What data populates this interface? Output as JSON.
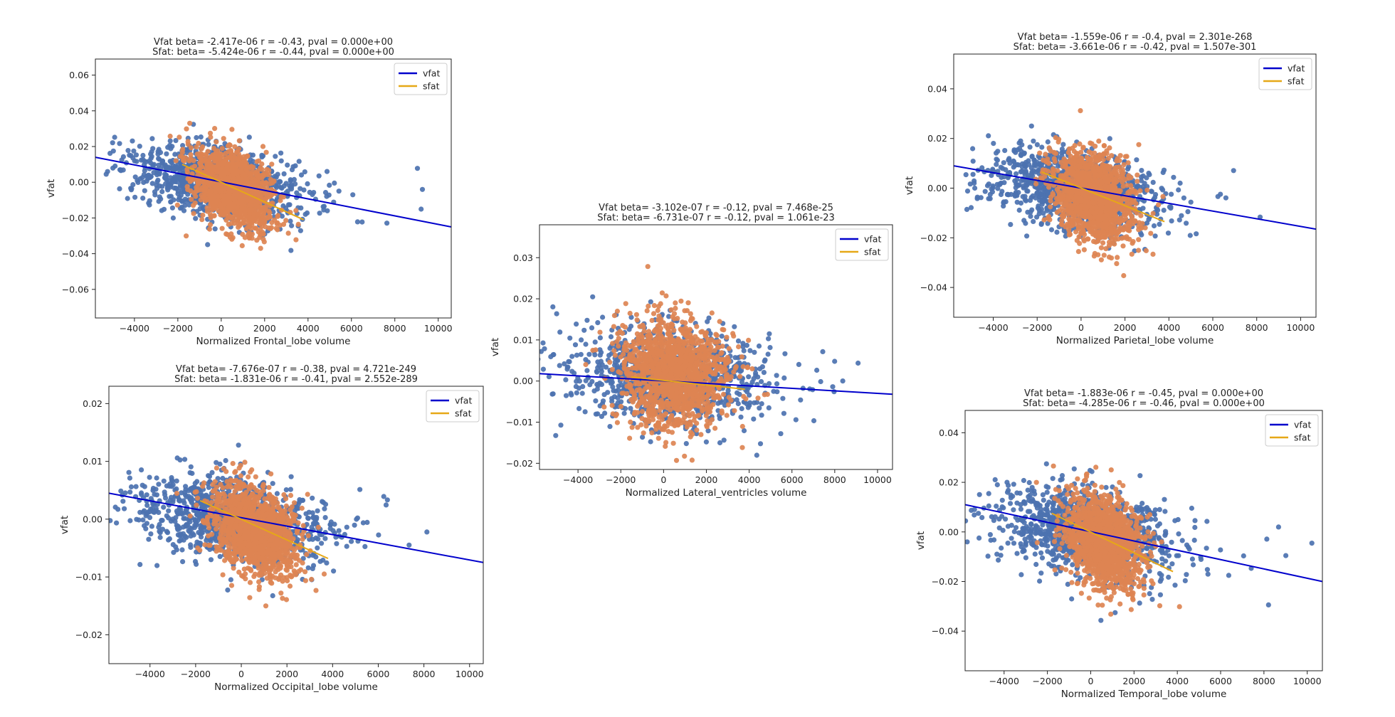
{
  "series_colors": {
    "vfat_points": "#4c72b0",
    "sfat_points": "#dd8452",
    "vfat_line": "#0000cc",
    "sfat_line": "#e6a817"
  },
  "chart_data": [
    {
      "type": "scatter",
      "title_lines": [
        "Vfat beta= -2.417e-06 r = -0.43, pval = 0.000e+00",
        "Sfat: beta= -5.424e-06 r = -0.44, pval = 0.000e+00"
      ],
      "xlabel": "Normalized Frontal_lobe volume",
      "ylabel": "vfat",
      "xlim": [
        -5800,
        10600
      ],
      "ylim": [
        -0.076,
        0.069
      ],
      "xticks": [
        -4000,
        -2000,
        0,
        2000,
        4000,
        6000,
        8000,
        10000
      ],
      "xtick_labels": [
        "−4000",
        "−2000",
        "0",
        "2000",
        "4000",
        "6000",
        "8000",
        "10000"
      ],
      "yticks": [
        -0.06,
        -0.04,
        -0.02,
        0.0,
        0.02,
        0.04,
        0.06
      ],
      "ytick_labels": [
        "−0.06",
        "−0.04",
        "−0.02",
        "0.00",
        "0.02",
        "0.04",
        "0.06"
      ],
      "legend": {
        "placement": "top-right",
        "entries": [
          "vfat",
          "sfat"
        ]
      },
      "vfat_cloud": {
        "x_center": -200,
        "x_spread": 1900,
        "y_center": 0.0,
        "y_spread": 0.0095
      },
      "sfat_cloud": {
        "x_center": 600,
        "x_spread": 900,
        "y_center": -0.004,
        "y_spread": 0.01
      },
      "vfat_fit": [
        [
          -5800,
          0.014
        ],
        [
          10600,
          -0.025
        ]
      ],
      "sfat_fit": [
        [
          -1800,
          0.01
        ],
        [
          3800,
          -0.021
        ]
      ]
    },
    {
      "type": "scatter",
      "title_lines": [
        "Vfat beta= -7.676e-07 r = -0.38, pval = 4.721e-249",
        "Sfat: beta= -1.831e-06 r = -0.41, pval = 2.552e-289"
      ],
      "xlabel": "Normalized Occipital_lobe volume",
      "ylabel": "vfat",
      "xlim": [
        -5800,
        10600
      ],
      "ylim": [
        -0.025,
        0.023
      ],
      "xticks": [
        -4000,
        -2000,
        0,
        2000,
        4000,
        6000,
        8000,
        10000
      ],
      "xtick_labels": [
        "−4000",
        "−2000",
        "0",
        "2000",
        "4000",
        "6000",
        "8000",
        "10000"
      ],
      "yticks": [
        -0.02,
        -0.01,
        0.0,
        0.01,
        0.02
      ],
      "ytick_labels": [
        "−0.02",
        "−0.01",
        "0.00",
        "0.01",
        "0.02"
      ],
      "legend": {
        "placement": "top-right",
        "entries": [
          "vfat",
          "sfat"
        ]
      },
      "vfat_cloud": {
        "x_center": -300,
        "x_spread": 1900,
        "y_center": 0.0,
        "y_spread": 0.0035
      },
      "sfat_cloud": {
        "x_center": 600,
        "x_spread": 900,
        "y_center": -0.002,
        "y_spread": 0.0038
      },
      "vfat_fit": [
        [
          -5800,
          0.0045
        ],
        [
          10600,
          -0.0075
        ]
      ],
      "sfat_fit": [
        [
          -1800,
          0.0032
        ],
        [
          3800,
          -0.0068
        ]
      ]
    },
    {
      "type": "scatter",
      "title_lines": [
        "Vfat beta= -3.102e-07 r = -0.12, pval = 7.468e-25",
        "Sfat: beta= -6.731e-07 r = -0.12, pval = 1.061e-23"
      ],
      "xlabel": "Normalized Lateral_ventricles volume",
      "ylabel": "vfat",
      "xlim": [
        -5800,
        10700
      ],
      "ylim": [
        -0.0215,
        0.038
      ],
      "xticks": [
        -4000,
        -2000,
        0,
        2000,
        4000,
        6000,
        8000,
        10000
      ],
      "xtick_labels": [
        "−4000",
        "−2000",
        "0",
        "2000",
        "4000",
        "6000",
        "8000",
        "10000"
      ],
      "yticks": [
        -0.02,
        -0.01,
        0.0,
        0.01,
        0.02,
        0.03
      ],
      "ytick_labels": [
        "−0.02",
        "−0.01",
        "0.00",
        "0.01",
        "0.02",
        "0.03"
      ],
      "legend": {
        "placement": "top-right",
        "entries": [
          "vfat",
          "sfat"
        ]
      },
      "vfat_cloud": {
        "x_center": 300,
        "x_spread": 2200,
        "y_center": 0.001,
        "y_spread": 0.0055
      },
      "sfat_cloud": {
        "x_center": 500,
        "x_spread": 1200,
        "y_center": 0.002,
        "y_spread": 0.0065
      },
      "vfat_fit": [
        [
          -5800,
          0.0018
        ],
        [
          10700,
          -0.0032
        ]
      ],
      "sfat_fit": [
        [
          -1500,
          0.001
        ],
        [
          3800,
          -0.002
        ]
      ]
    },
    {
      "type": "scatter",
      "title_lines": [
        "Vfat beta= -1.559e-06 r = -0.4, pval = 2.301e-268",
        "Sfat: beta= -3.661e-06 r = -0.42, pval = 1.507e-301"
      ],
      "xlabel": "Normalized Parietal_lobe volume",
      "ylabel": "vfat",
      "xlim": [
        -5800,
        10700
      ],
      "ylim": [
        -0.052,
        0.054
      ],
      "xticks": [
        -4000,
        -2000,
        0,
        2000,
        4000,
        6000,
        8000,
        10000
      ],
      "xtick_labels": [
        "−4000",
        "−2000",
        "0",
        "2000",
        "4000",
        "6000",
        "8000",
        "10000"
      ],
      "yticks": [
        -0.04,
        -0.02,
        0.0,
        0.02,
        0.04
      ],
      "ytick_labels": [
        "−0.04",
        "−0.02",
        "0.00",
        "0.02",
        "0.04"
      ],
      "legend": {
        "placement": "top-right",
        "entries": [
          "vfat",
          "sfat"
        ]
      },
      "vfat_cloud": {
        "x_center": -200,
        "x_spread": 1900,
        "y_center": 0.0,
        "y_spread": 0.0075
      },
      "sfat_cloud": {
        "x_center": 600,
        "x_spread": 900,
        "y_center": -0.004,
        "y_spread": 0.0085
      },
      "vfat_fit": [
        [
          -5800,
          0.009
        ],
        [
          10700,
          -0.0165
        ]
      ],
      "sfat_fit": [
        [
          -1800,
          0.0065
        ],
        [
          3800,
          -0.0135
        ]
      ]
    },
    {
      "type": "scatter",
      "title_lines": [
        "Vfat beta= -1.883e-06 r = -0.45, pval = 0.000e+00",
        "Sfat: beta= -4.285e-06 r = -0.46, pval = 0.000e+00"
      ],
      "xlabel": "Normalized Temporal_lobe volume",
      "ylabel": "vfat",
      "xlim": [
        -5800,
        10700
      ],
      "ylim": [
        -0.056,
        0.049
      ],
      "xticks": [
        -4000,
        -2000,
        0,
        2000,
        4000,
        6000,
        8000,
        10000
      ],
      "xtick_labels": [
        "−4000",
        "−2000",
        "0",
        "2000",
        "4000",
        "6000",
        "8000",
        "10000"
      ],
      "yticks": [
        -0.04,
        -0.02,
        0.0,
        0.02,
        0.04
      ],
      "ytick_labels": [
        "−0.04",
        "−0.02",
        "0.00",
        "0.02",
        "0.04"
      ],
      "legend": {
        "placement": "top-right",
        "entries": [
          "vfat",
          "sfat"
        ]
      },
      "vfat_cloud": {
        "x_center": -200,
        "x_spread": 1900,
        "y_center": 0.0,
        "y_spread": 0.0085
      },
      "sfat_cloud": {
        "x_center": 600,
        "x_spread": 900,
        "y_center": -0.004,
        "y_spread": 0.009
      },
      "vfat_fit": [
        [
          -5800,
          0.011
        ],
        [
          10700,
          -0.02
        ]
      ],
      "sfat_fit": [
        [
          -1800,
          0.0075
        ],
        [
          3800,
          -0.016
        ]
      ]
    }
  ]
}
